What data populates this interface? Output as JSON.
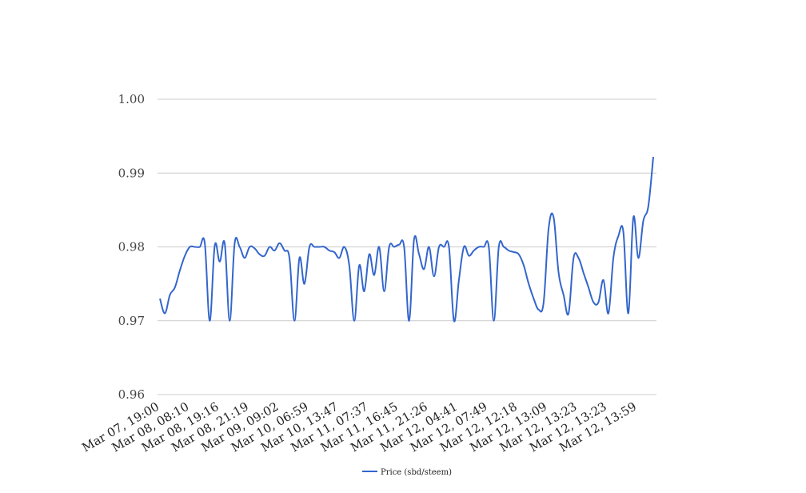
{
  "chart_data": {
    "type": "line",
    "title": "",
    "xlabel": "",
    "ylabel": "",
    "ylim": [
      0.96,
      1.0
    ],
    "y_ticks": [
      "0.96",
      "0.97",
      "0.98",
      "0.99",
      "1.00"
    ],
    "y_tick_values": [
      0.96,
      0.97,
      0.98,
      0.99,
      1.0
    ],
    "x_tick_labels": [
      "Mar 07, 19:00",
      "Mar 08, 08:10",
      "Mar 08, 19:16",
      "Mar 08, 21:19",
      "Mar 09, 09:02",
      "Mar 10, 06:59",
      "Mar 10, 13:47",
      "Mar 11, 07:37",
      "Mar 11, 16:45",
      "Mar 11, 21:26",
      "Mar 12, 04:41",
      "Mar 12, 07:49",
      "Mar 12, 12:18",
      "Mar 12, 13:09",
      "Mar 12, 13:23",
      "Mar 12, 13:23",
      "Mar 12, 13:59"
    ],
    "grid": true,
    "legend_position": "bottom",
    "series": [
      {
        "name": "Price (sbd/steem)",
        "color": "#3366cc",
        "values": [
          0.973,
          0.971,
          0.9735,
          0.9745,
          0.9768,
          0.9788,
          0.98,
          0.98,
          0.98,
          0.9805,
          0.97,
          0.9802,
          0.978,
          0.9805,
          0.97,
          0.9805,
          0.98,
          0.9785,
          0.98,
          0.9798,
          0.979,
          0.9788,
          0.98,
          0.9795,
          0.9805,
          0.9795,
          0.9785,
          0.97,
          0.9785,
          0.975,
          0.98,
          0.98,
          0.98,
          0.98,
          0.9795,
          0.9793,
          0.9785,
          0.98,
          0.9775,
          0.97,
          0.9775,
          0.974,
          0.979,
          0.9762,
          0.98,
          0.974,
          0.98,
          0.98,
          0.9803,
          0.98,
          0.97,
          0.981,
          0.979,
          0.977,
          0.98,
          0.976,
          0.98,
          0.98,
          0.98,
          0.97,
          0.9755,
          0.98,
          0.9788,
          0.9795,
          0.98,
          0.98,
          0.98,
          0.97,
          0.98,
          0.98,
          0.9795,
          0.9793,
          0.979,
          0.9775,
          0.975,
          0.973,
          0.9715,
          0.9725,
          0.9825,
          0.984,
          0.9765,
          0.9735,
          0.971,
          0.9785,
          0.9785,
          0.9765,
          0.9745,
          0.9725,
          0.9725,
          0.9755,
          0.971,
          0.9785,
          0.9815,
          0.982,
          0.971,
          0.984,
          0.9785,
          0.9835,
          0.9855,
          0.9922
        ]
      }
    ]
  }
}
